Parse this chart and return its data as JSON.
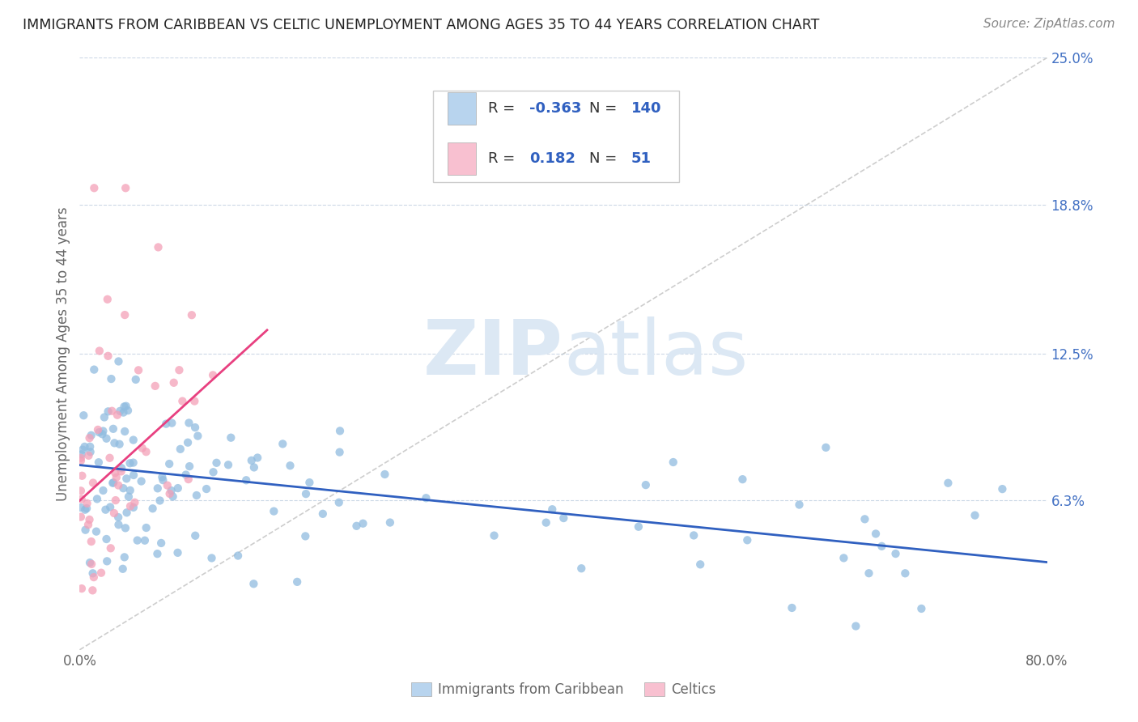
{
  "title": "IMMIGRANTS FROM CARIBBEAN VS CELTIC UNEMPLOYMENT AMONG AGES 35 TO 44 YEARS CORRELATION CHART",
  "source": "Source: ZipAtlas.com",
  "ylabel": "Unemployment Among Ages 35 to 44 years",
  "xlim": [
    0.0,
    0.8
  ],
  "ylim": [
    0.0,
    0.25
  ],
  "yticks": [
    0.063,
    0.125,
    0.188,
    0.25
  ],
  "ytick_labels": [
    "6.3%",
    "12.5%",
    "18.8%",
    "25.0%"
  ],
  "caribbean_R": -0.363,
  "caribbean_N": 140,
  "celtic_R": 0.182,
  "celtic_N": 51,
  "caribbean_dot_color": "#90bce0",
  "celtic_dot_color": "#f4a0b8",
  "caribbean_legend_color": "#b8d4ee",
  "celtic_legend_color": "#f8c0d0",
  "trend_blue": "#3060c0",
  "trend_pink": "#e84080",
  "diagonal_color": "#c8c8c8",
  "watermark_zip_color": "#dce8f4",
  "watermark_atlas_color": "#dce8f4",
  "grid_color": "#c0cfe0",
  "legend_label_caribbean": "Immigrants from Caribbean",
  "legend_label_celtic": "Celtics",
  "background_color": "#ffffff",
  "title_color": "#222222",
  "axis_color": "#4472c4",
  "label_color": "#666666",
  "car_trend_x": [
    0.0,
    0.8
  ],
  "car_trend_y": [
    0.078,
    0.037
  ],
  "cel_trend_x": [
    0.0,
    0.155
  ],
  "cel_trend_y": [
    0.063,
    0.135
  ]
}
